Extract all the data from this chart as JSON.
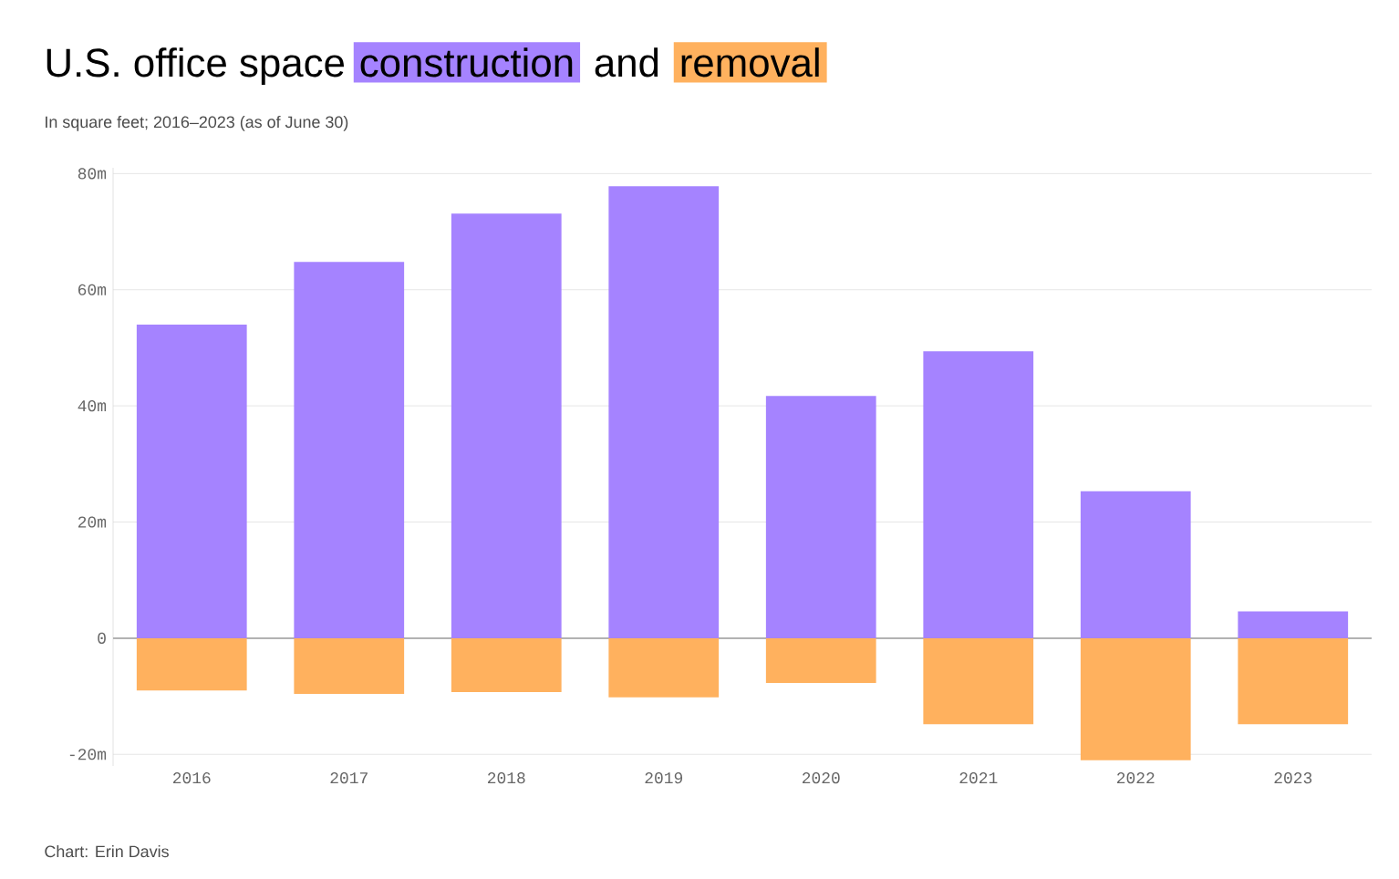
{
  "chart_data": {
    "type": "bar",
    "title": "U.S. office space",
    "subtitle": "In square feet; 2016–2023 (as of June 30)",
    "categories": [
      "2016",
      "2017",
      "2018",
      "2019",
      "2020",
      "2021",
      "2022",
      "2023"
    ],
    "series": [
      {
        "name": "construction",
        "color": "#a583ff",
        "values": [
          54,
          64.8,
          73.1,
          77.8,
          41.7,
          49.4,
          25.3,
          4.6
        ]
      },
      {
        "name": "removal",
        "color": "#ffb15e",
        "values": [
          -9,
          -9.6,
          -9.3,
          -10.2,
          -7.7,
          -14.8,
          -21,
          -14.8
        ]
      }
    ],
    "stacked": true,
    "ylim": [
      -22,
      81
    ],
    "yticks": [
      {
        "value": -20,
        "label": "-20m"
      },
      {
        "value": 0,
        "label": "0"
      },
      {
        "value": 20,
        "label": "20m"
      },
      {
        "value": 40,
        "label": "40m"
      },
      {
        "value": 60,
        "label": "60m"
      },
      {
        "value": 80,
        "label": "80m"
      }
    ],
    "grid": "y",
    "annotations": [
      "and",
      "Chart: Erin Davis"
    ]
  }
}
